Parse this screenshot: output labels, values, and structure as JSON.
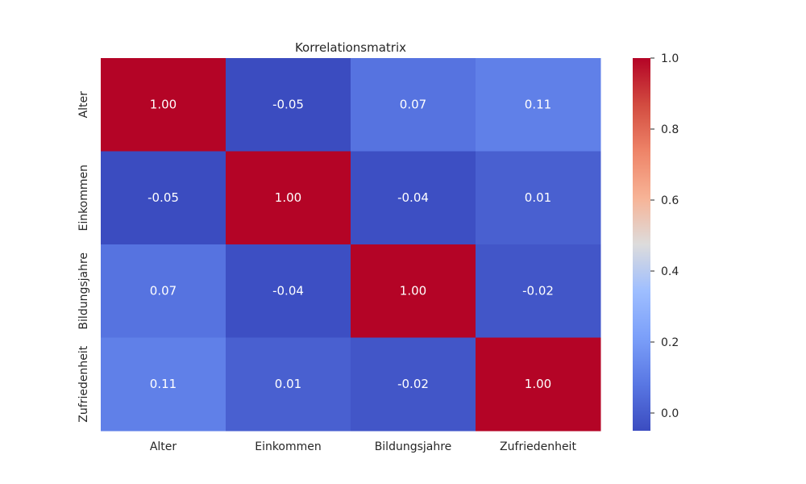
{
  "chart_data": {
    "type": "heatmap",
    "title": "Korrelationsmatrix",
    "x_labels": [
      "Alter",
      "Einkommen",
      "Bildungsjahre",
      "Zufriedenheit"
    ],
    "y_labels": [
      "Alter",
      "Einkommen",
      "Bildungsjahre",
      "Zufriedenheit"
    ],
    "values": [
      [
        1.0,
        -0.05,
        0.07,
        0.11
      ],
      [
        -0.05,
        1.0,
        -0.04,
        0.01
      ],
      [
        0.07,
        -0.04,
        1.0,
        -0.02
      ],
      [
        0.11,
        0.01,
        -0.02,
        1.0
      ]
    ],
    "cell_labels": [
      [
        "1.00",
        "-0.05",
        "0.07",
        "0.11"
      ],
      [
        "-0.05",
        "1.00",
        "-0.04",
        "0.01"
      ],
      [
        "0.07",
        "-0.04",
        "1.00",
        "-0.02"
      ],
      [
        "0.11",
        "0.01",
        "-0.02",
        "1.00"
      ]
    ],
    "colormap": "coolwarm",
    "vmin": -0.05,
    "vmax": 1.0,
    "colorbar_ticks": [
      "0.0",
      "0.2",
      "0.4",
      "0.6",
      "0.8",
      "1.0"
    ],
    "colorbar_tick_values": [
      0.0,
      0.2,
      0.4,
      0.6,
      0.8,
      1.0
    ],
    "grid": false,
    "legend_placement": "right"
  }
}
